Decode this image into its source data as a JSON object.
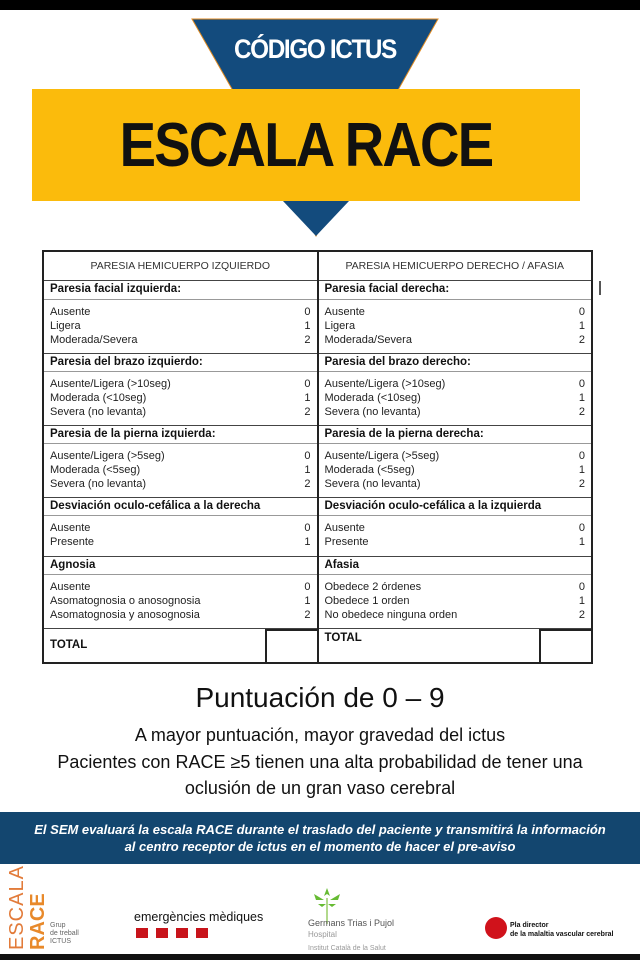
{
  "header": {
    "code": "CÓDIGO ICTUS",
    "title": "ESCALA RACE"
  },
  "colors": {
    "blue": "#134b7d",
    "yellow": "#fbbb0c"
  },
  "table": {
    "left": {
      "heading": "PARESIA HEMICUERPO IZQUIERDO",
      "sections": [
        {
          "title": "Paresia facial izquierda:",
          "items": [
            [
              "Ausente",
              "0"
            ],
            [
              "Ligera",
              "1"
            ],
            [
              "Moderada/Severa",
              "2"
            ]
          ]
        },
        {
          "title": "Paresia del brazo izquierdo:",
          "items": [
            [
              "Ausente/Ligera (>10seg)",
              "0"
            ],
            [
              "Moderada (<10seg)",
              "1"
            ],
            [
              "Severa (no levanta)",
              "2"
            ]
          ]
        },
        {
          "title": "Paresia de la pierna izquierda:",
          "items": [
            [
              "Ausente/Ligera (>5seg)",
              "0"
            ],
            [
              "Moderada (<5seg)",
              "1"
            ],
            [
              "Severa (no levanta)",
              "2"
            ]
          ]
        },
        {
          "title": "Desviación oculo-cefálica a la derecha",
          "items": [
            [
              "Ausente",
              "0"
            ],
            [
              "Presente",
              "1"
            ]
          ]
        },
        {
          "title": "Agnosia",
          "items": [
            [
              "Ausente",
              "0"
            ],
            [
              "Asomatognosia o anosognosia",
              "1"
            ],
            [
              "Asomatognosia y anosognosia",
              "2"
            ]
          ]
        }
      ],
      "total": "TOTAL"
    },
    "right": {
      "heading": "PARESIA HEMICUERPO DERECHO / AFASIA",
      "sections": [
        {
          "title": "Paresia facial derecha:",
          "items": [
            [
              "Ausente",
              "0"
            ],
            [
              "Ligera",
              "1"
            ],
            [
              "Moderada/Severa",
              "2"
            ]
          ]
        },
        {
          "title": "Paresia del brazo derecho:",
          "items": [
            [
              "Ausente/Ligera (>10seg)",
              "0"
            ],
            [
              "Moderada (<10seg)",
              "1"
            ],
            [
              "Severa (no levanta)",
              "2"
            ]
          ]
        },
        {
          "title": "Paresia de la pierna derecha:",
          "items": [
            [
              "Ausente/Ligera (>5seg)",
              "0"
            ],
            [
              "Moderada (<5seg)",
              "1"
            ],
            [
              "Severa (no levanta)",
              "2"
            ]
          ]
        },
        {
          "title": "Desviación oculo-cefálica a la izquierda",
          "items": [
            [
              "Ausente",
              "0"
            ],
            [
              "Presente",
              "1"
            ]
          ]
        },
        {
          "title": "Afasia",
          "items": [
            [
              "Obedece 2 órdenes",
              "0"
            ],
            [
              "Obedece 1 orden",
              "1"
            ],
            [
              "No obedece ninguna orden",
              "2"
            ]
          ]
        }
      ],
      "total": "TOTAL"
    }
  },
  "score": {
    "title": "Puntuación de 0 – 9",
    "lines": [
      "A mayor puntuación, mayor gravedad del ictus",
      "Pacientes con RACE ≥5 tienen una alta probabilidad de tener una",
      "oclusión de un gran vaso cerebral"
    ]
  },
  "band": {
    "line1": "El SEM evaluará la escala RACE durante el traslado del paciente y transmitirá la información",
    "line2": "al centro receptor de ictus en el momento de hacer el pre-aviso"
  },
  "logos": {
    "escala": "ESCALA",
    "race": "RACE",
    "grup": [
      "Grup",
      "de treball",
      "ICTUS"
    ],
    "sem": "emergències mèdiques",
    "gtp": "Germans Trias i Pujol",
    "gtp_sub": "Hospital",
    "ics": "Institut Català de la Salut",
    "pla1": "Pla director",
    "pla2": "de la malaltia vascular cerebral"
  }
}
